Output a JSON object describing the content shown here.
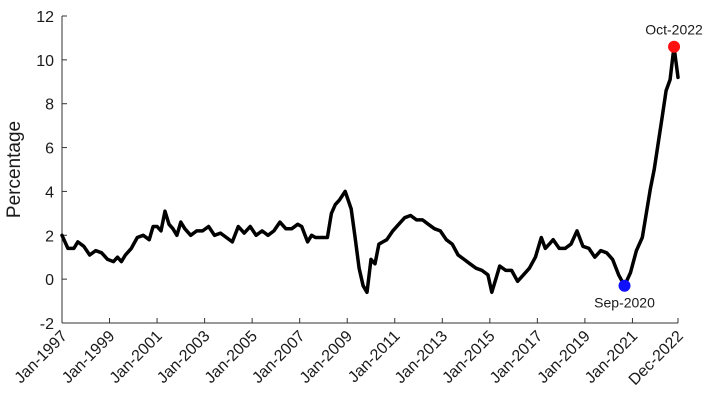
{
  "chart_data": {
    "type": "line",
    "ylabel": "Percentage",
    "ylim": [
      -2,
      12
    ],
    "yticks": [
      -2,
      0,
      2,
      4,
      6,
      8,
      10,
      12
    ],
    "x_range": [
      "1997-01",
      "2022-12"
    ],
    "xticks": [
      {
        "date": "1997-01",
        "label": "Jan-1997"
      },
      {
        "date": "1999-01",
        "label": "Jan-1999"
      },
      {
        "date": "2001-01",
        "label": "Jan-2001"
      },
      {
        "date": "2003-01",
        "label": "Jan-2003"
      },
      {
        "date": "2005-01",
        "label": "Jan-2005"
      },
      {
        "date": "2007-01",
        "label": "Jan-2007"
      },
      {
        "date": "2009-01",
        "label": "Jan-2009"
      },
      {
        "date": "2011-01",
        "label": "Jan-2011"
      },
      {
        "date": "2013-01",
        "label": "Jan-2013"
      },
      {
        "date": "2015-01",
        "label": "Jan-2015"
      },
      {
        "date": "2017-01",
        "label": "Jan-2017"
      },
      {
        "date": "2019-01",
        "label": "Jan-2019"
      },
      {
        "date": "2021-01",
        "label": "Jan-2021"
      },
      {
        "date": "2022-12",
        "label": "Dec-2022"
      }
    ],
    "series": [
      {
        "color": "#000000",
        "points": [
          [
            "1997-01",
            2.0
          ],
          [
            "1997-04",
            1.4
          ],
          [
            "1997-07",
            1.4
          ],
          [
            "1997-09",
            1.7
          ],
          [
            "1997-12",
            1.5
          ],
          [
            "1998-03",
            1.1
          ],
          [
            "1998-06",
            1.3
          ],
          [
            "1998-09",
            1.2
          ],
          [
            "1998-12",
            0.9
          ],
          [
            "1999-03",
            0.8
          ],
          [
            "1999-05",
            1.0
          ],
          [
            "1999-07",
            0.8
          ],
          [
            "1999-09",
            1.1
          ],
          [
            "1999-12",
            1.4
          ],
          [
            "2000-03",
            1.9
          ],
          [
            "2000-06",
            2.0
          ],
          [
            "2000-09",
            1.8
          ],
          [
            "2000-11",
            2.4
          ],
          [
            "2001-01",
            2.4
          ],
          [
            "2001-03",
            2.2
          ],
          [
            "2001-05",
            3.1
          ],
          [
            "2001-07",
            2.5
          ],
          [
            "2001-09",
            2.3
          ],
          [
            "2001-11",
            2.0
          ],
          [
            "2002-01",
            2.6
          ],
          [
            "2002-03",
            2.3
          ],
          [
            "2002-06",
            2.0
          ],
          [
            "2002-09",
            2.2
          ],
          [
            "2002-12",
            2.2
          ],
          [
            "2003-03",
            2.4
          ],
          [
            "2003-06",
            2.0
          ],
          [
            "2003-09",
            2.1
          ],
          [
            "2003-12",
            1.9
          ],
          [
            "2004-03",
            1.7
          ],
          [
            "2004-06",
            2.4
          ],
          [
            "2004-09",
            2.1
          ],
          [
            "2004-12",
            2.4
          ],
          [
            "2005-03",
            2.0
          ],
          [
            "2005-06",
            2.2
          ],
          [
            "2005-09",
            2.0
          ],
          [
            "2005-12",
            2.2
          ],
          [
            "2006-03",
            2.6
          ],
          [
            "2006-06",
            2.3
          ],
          [
            "2006-09",
            2.3
          ],
          [
            "2006-12",
            2.5
          ],
          [
            "2007-02",
            2.4
          ],
          [
            "2007-05",
            1.7
          ],
          [
            "2007-07",
            2.0
          ],
          [
            "2007-09",
            1.9
          ],
          [
            "2007-12",
            1.9
          ],
          [
            "2008-03",
            1.9
          ],
          [
            "2008-05",
            3.0
          ],
          [
            "2008-07",
            3.4
          ],
          [
            "2008-09",
            3.6
          ],
          [
            "2008-12",
            4.0
          ],
          [
            "2009-03",
            3.2
          ],
          [
            "2009-05",
            1.9
          ],
          [
            "2009-07",
            0.5
          ],
          [
            "2009-09",
            -0.3
          ],
          [
            "2009-11",
            -0.6
          ],
          [
            "2010-01",
            0.9
          ],
          [
            "2010-03",
            0.7
          ],
          [
            "2010-05",
            1.6
          ],
          [
            "2010-07",
            1.7
          ],
          [
            "2010-09",
            1.8
          ],
          [
            "2010-12",
            2.2
          ],
          [
            "2011-03",
            2.5
          ],
          [
            "2011-06",
            2.8
          ],
          [
            "2011-09",
            2.9
          ],
          [
            "2011-12",
            2.7
          ],
          [
            "2012-03",
            2.7
          ],
          [
            "2012-06",
            2.5
          ],
          [
            "2012-09",
            2.3
          ],
          [
            "2012-12",
            2.2
          ],
          [
            "2013-03",
            1.8
          ],
          [
            "2013-06",
            1.6
          ],
          [
            "2013-09",
            1.1
          ],
          [
            "2013-12",
            0.9
          ],
          [
            "2014-03",
            0.7
          ],
          [
            "2014-06",
            0.5
          ],
          [
            "2014-09",
            0.4
          ],
          [
            "2014-12",
            0.2
          ],
          [
            "2015-02",
            -0.6
          ],
          [
            "2015-04",
            0.0
          ],
          [
            "2015-06",
            0.6
          ],
          [
            "2015-09",
            0.4
          ],
          [
            "2015-12",
            0.4
          ],
          [
            "2016-03",
            -0.1
          ],
          [
            "2016-06",
            0.2
          ],
          [
            "2016-09",
            0.5
          ],
          [
            "2016-12",
            1.0
          ],
          [
            "2017-03",
            1.9
          ],
          [
            "2017-05",
            1.4
          ],
          [
            "2017-07",
            1.6
          ],
          [
            "2017-09",
            1.8
          ],
          [
            "2017-12",
            1.4
          ],
          [
            "2018-03",
            1.4
          ],
          [
            "2018-06",
            1.6
          ],
          [
            "2018-09",
            2.2
          ],
          [
            "2018-12",
            1.5
          ],
          [
            "2019-03",
            1.4
          ],
          [
            "2019-06",
            1.0
          ],
          [
            "2019-09",
            1.3
          ],
          [
            "2019-12",
            1.2
          ],
          [
            "2020-03",
            0.9
          ],
          [
            "2020-06",
            0.2
          ],
          [
            "2020-09",
            -0.3
          ],
          [
            "2020-12",
            0.3
          ],
          [
            "2021-03",
            1.3
          ],
          [
            "2021-06",
            1.9
          ],
          [
            "2021-08",
            3.0
          ],
          [
            "2021-10",
            4.1
          ],
          [
            "2021-12",
            5.0
          ],
          [
            "2022-02",
            6.2
          ],
          [
            "2022-04",
            7.4
          ],
          [
            "2022-06",
            8.6
          ],
          [
            "2022-08",
            9.1
          ],
          [
            "2022-10",
            10.6
          ],
          [
            "2022-12",
            9.2
          ]
        ]
      }
    ],
    "annotations": [
      {
        "date": "2020-09",
        "y": -0.3,
        "label": "Sep-2020",
        "color": "#1010ff",
        "label_position": "below"
      },
      {
        "date": "2022-10",
        "y": 10.6,
        "label": "Oct-2022",
        "color": "#ff1010",
        "label_position": "above"
      }
    ]
  }
}
